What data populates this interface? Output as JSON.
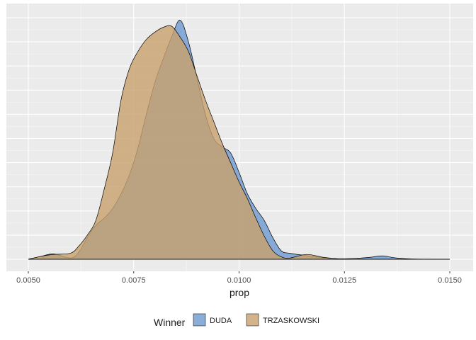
{
  "chart_data": {
    "type": "area",
    "title": "",
    "xlabel": "prop",
    "ylabel": "",
    "xlim": [
      0.0049,
      0.0151
    ],
    "ylim": [
      0,
      10
    ],
    "x_ticks": [
      0.005,
      0.0075,
      0.01,
      0.0125,
      0.015
    ],
    "x_tick_labels": [
      "0.0050",
      "0.0075",
      "0.0100",
      "0.0125",
      "0.0150"
    ],
    "grid": true,
    "legend": {
      "title": "Winner",
      "position": "bottom",
      "entries": [
        "DUDA",
        "TRZASKOWSKI"
      ]
    },
    "series": [
      {
        "name": "DUDA",
        "color": "#6e98cf",
        "x": [
          0.005,
          0.0053,
          0.0056,
          0.006,
          0.0062,
          0.0064,
          0.0066,
          0.0068,
          0.007,
          0.0072,
          0.0074,
          0.0076,
          0.0078,
          0.008,
          0.0082,
          0.0084,
          0.0086,
          0.0088,
          0.009,
          0.0092,
          0.0094,
          0.0096,
          0.0098,
          0.01,
          0.0102,
          0.0104,
          0.0106,
          0.0108,
          0.011,
          0.0112,
          0.0116,
          0.012,
          0.0124,
          0.0128,
          0.0131,
          0.0134,
          0.0137,
          0.0141,
          0.015
        ],
        "values": [
          0.0,
          0.12,
          0.22,
          0.05,
          0.3,
          0.9,
          1.4,
          1.7,
          2.1,
          2.7,
          3.5,
          4.6,
          6.0,
          7.3,
          8.3,
          9.2,
          9.9,
          9.0,
          7.5,
          6.0,
          5.0,
          4.65,
          4.4,
          3.6,
          2.7,
          2.1,
          1.6,
          0.9,
          0.35,
          0.25,
          0.15,
          0.06,
          0.02,
          0.04,
          0.08,
          0.14,
          0.06,
          0.01,
          0.0
        ]
      },
      {
        "name": "TRZASKOWSKI",
        "color": "#c8a06b",
        "x": [
          0.005,
          0.0053,
          0.0056,
          0.006,
          0.0062,
          0.0064,
          0.0066,
          0.0068,
          0.007,
          0.0072,
          0.0074,
          0.0076,
          0.0078,
          0.008,
          0.0082,
          0.0084,
          0.0086,
          0.0088,
          0.009,
          0.0092,
          0.0094,
          0.0096,
          0.0098,
          0.01,
          0.0102,
          0.0104,
          0.0106,
          0.0108,
          0.011,
          0.0112,
          0.0116,
          0.012,
          0.0124,
          0.0128,
          0.0131,
          0.0134,
          0.0137,
          0.0141,
          0.015
        ],
        "values": [
          0.0,
          0.12,
          0.2,
          0.25,
          0.55,
          1.0,
          1.6,
          2.9,
          4.4,
          6.6,
          7.9,
          8.6,
          9.1,
          9.4,
          9.6,
          9.65,
          9.2,
          8.6,
          7.6,
          6.6,
          5.7,
          4.8,
          4.0,
          3.2,
          2.5,
          1.7,
          0.95,
          0.35,
          0.1,
          0.05,
          0.2,
          0.08,
          0.01,
          0.0,
          0.0,
          0.0,
          0.0,
          0.0,
          0.0
        ]
      }
    ]
  }
}
